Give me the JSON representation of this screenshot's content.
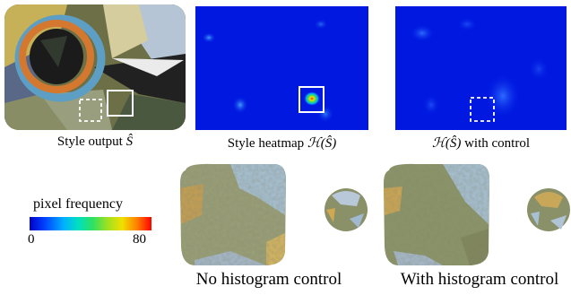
{
  "figure": {
    "top_row": {
      "style_output_caption_prefix": "Style output ",
      "style_output_caption_math": "Ŝ",
      "heatmap_caption_prefix": "Style heatmap ",
      "heatmap_caption_math": "ℋ(Ŝ)",
      "control_caption_math": "ℋ(Ŝ)",
      "control_caption_suffix": " with control"
    },
    "legend": {
      "title": "pixel frequency",
      "min_label": "0",
      "max_label": "80",
      "colors": [
        "#0000c8",
        "#00b0ff",
        "#30e060",
        "#f0e000",
        "#ff0000"
      ]
    },
    "bottom_row": {
      "left_caption": "No histogram control",
      "right_caption": "With histogram control"
    }
  },
  "colors": {
    "heatmap_bg": "#0018e0",
    "texture_olive": "#8a8a5a",
    "texture_blue": "#9ab8d0",
    "texture_orange": "#e08030"
  }
}
